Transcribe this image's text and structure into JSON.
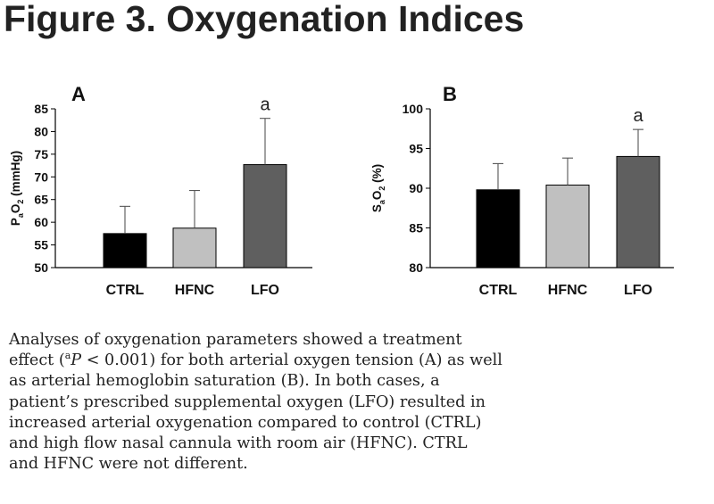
{
  "figure": {
    "title": "Figure 3.  Oxygenation Indices"
  },
  "chart_data": [
    {
      "type": "bar",
      "panel_label": "A",
      "categories": [
        "CTRL",
        "HFNC",
        "LFO"
      ],
      "values": [
        57.5,
        58.7,
        72.7
      ],
      "error_bars": [
        6.0,
        8.3,
        10.2
      ],
      "significance_marks": [
        "",
        "",
        "a"
      ],
      "ylabel": "PaO2 (mmHg)",
      "ylabel_parts": {
        "main": "P",
        "sub": "a",
        "mid": "O",
        "sub2": "2",
        "tail": " (mmHg)"
      },
      "ylim": [
        50,
        85
      ],
      "yticks": [
        "85",
        "80",
        "75",
        "70",
        "65",
        "60",
        "55",
        "50"
      ],
      "colors": [
        "#000000",
        "#c0c0c0",
        "#5f5f5f"
      ]
    },
    {
      "type": "bar",
      "panel_label": "B",
      "categories": [
        "CTRL",
        "HFNC",
        "LFO"
      ],
      "values": [
        89.8,
        90.4,
        94.0
      ],
      "error_bars": [
        3.3,
        3.4,
        3.4
      ],
      "significance_marks": [
        "",
        "",
        "a"
      ],
      "ylabel": "SaO2 (%)",
      "ylabel_parts": {
        "main": "S",
        "sub": "a",
        "mid": "O",
        "sub2": "2",
        "tail": " (%)"
      },
      "ylim": [
        80,
        100
      ],
      "yticks": [
        "100",
        "95",
        "90",
        "85",
        "80"
      ],
      "colors": [
        "#000000",
        "#c0c0c0",
        "#5f5f5f"
      ]
    }
  ],
  "caption": {
    "line1": "Analyses of oxygenation parameters showed a treatment",
    "line2_pre": "effect (",
    "line2_sup": "a",
    "line2_p": "P",
    "line2_post": " < 0.001) for both arterial oxygen tension (A) as well",
    "line3": "as arterial hemoglobin saturation (B).  In both cases, a",
    "line4": "patient’s prescribed supplemental oxygen (LFO) resulted in",
    "line5": "increased arterial oxygenation compared to control (CTRL)",
    "line6": "and high flow nasal cannula with room air (HFNC).  CTRL",
    "line7": "and HFNC were not different."
  }
}
